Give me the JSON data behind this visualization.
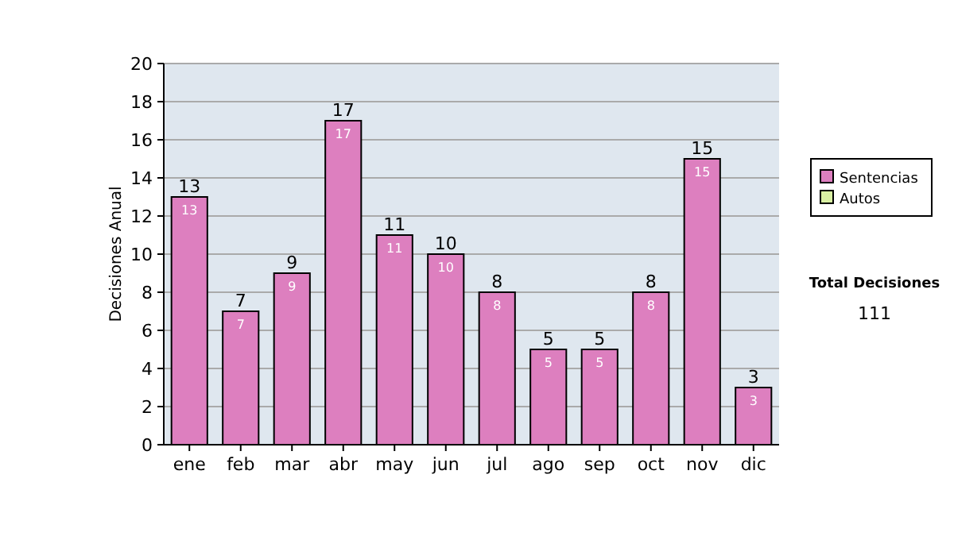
{
  "chart_data": {
    "type": "bar",
    "stacked": true,
    "ylabel": "Decisiones Anual",
    "categories": [
      "ene",
      "feb",
      "mar",
      "abr",
      "may",
      "jun",
      "jul",
      "ago",
      "sep",
      "oct",
      "nov",
      "dic"
    ],
    "series": [
      {
        "name": "Sentencias",
        "color": "#dd7fbf",
        "values": [
          13,
          7,
          9,
          17,
          11,
          10,
          8,
          5,
          5,
          8,
          15,
          3
        ],
        "value_labels": [
          "13",
          "7",
          "9",
          "17",
          "11",
          "10",
          "8",
          "5",
          "5",
          "8",
          "15",
          "3"
        ]
      },
      {
        "name": "Autos",
        "color": "#d9f0a3",
        "values": [
          0,
          0,
          0,
          0,
          0,
          0,
          0,
          0,
          0,
          0,
          0,
          0
        ]
      }
    ],
    "totals": [
      "13",
      "7",
      "9",
      "17",
      "11",
      "10",
      "8",
      "5",
      "5",
      "8",
      "15",
      "3"
    ],
    "ylim": [
      0,
      20
    ],
    "yticks": [
      0,
      2,
      4,
      6,
      8,
      10,
      12,
      14,
      16,
      18,
      20
    ],
    "grid": "y",
    "legend": "right",
    "annotations": [
      "Total Decisiones",
      "111"
    ]
  }
}
